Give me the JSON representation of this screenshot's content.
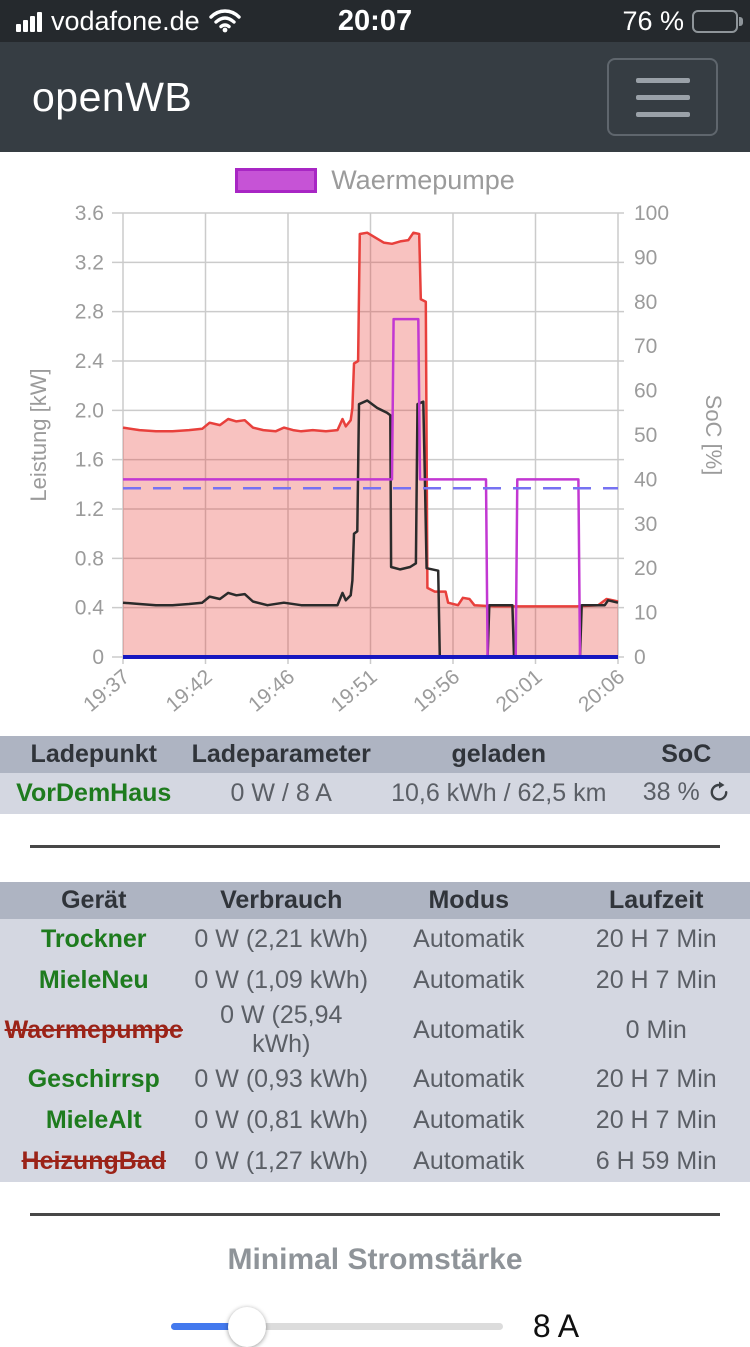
{
  "status_bar": {
    "carrier": "vodafone.de",
    "time": "20:07",
    "battery_label": "76 %",
    "battery_percent_value": 76
  },
  "header": {
    "app_title": "openWB"
  },
  "chart": {
    "legend_label": "Waermepumpe",
    "legend_color": "#c653d6",
    "legend_border": "#a826c4"
  },
  "chart_data": {
    "type": "line",
    "title": "",
    "xlabel": "",
    "ylabel_left": "Leistung [kW]",
    "ylabel_right": "SoC [%]",
    "ylim_left": [
      0,
      3.6
    ],
    "ylim_right": [
      0,
      100
    ],
    "yticks_left": [
      "0",
      "0.4",
      "0.8",
      "1.2",
      "1.6",
      "2.0",
      "2.4",
      "2.8",
      "3.2",
      "3.6"
    ],
    "yticks_right": [
      "0",
      "10",
      "20",
      "30",
      "40",
      "50",
      "60",
      "70",
      "80",
      "90",
      "100"
    ],
    "x_ticks": [
      "19:37",
      "19:42",
      "19:46",
      "19:51",
      "19:56",
      "20:01",
      "20:06"
    ],
    "x_tick_minutes": [
      0,
      5,
      9,
      14,
      19,
      24,
      29
    ],
    "grid": true,
    "legend_position": "top",
    "series": [
      {
        "name": "red_area_house_power",
        "axis": "left",
        "color": "#e8403c",
        "fill": "rgba(232,64,60,0.32)",
        "width": 2.5,
        "points": [
          [
            0,
            1.86
          ],
          [
            1,
            1.84
          ],
          [
            2,
            1.83
          ],
          [
            3,
            1.83
          ],
          [
            4,
            1.84
          ],
          [
            4.8,
            1.85
          ],
          [
            5.2,
            1.9
          ],
          [
            5.7,
            1.88
          ],
          [
            6.1,
            1.93
          ],
          [
            6.5,
            1.91
          ],
          [
            6.9,
            1.92
          ],
          [
            7.3,
            1.86
          ],
          [
            7.8,
            1.84
          ],
          [
            8.4,
            1.83
          ],
          [
            8.8,
            1.86
          ],
          [
            9.3,
            1.84
          ],
          [
            9.8,
            1.83
          ],
          [
            10.5,
            1.84
          ],
          [
            11.3,
            1.83
          ],
          [
            12.0,
            1.84
          ],
          [
            12.3,
            1.93
          ],
          [
            12.5,
            1.87
          ],
          [
            12.8,
            1.92
          ],
          [
            12.9,
            2.02
          ],
          [
            13.0,
            2.38
          ],
          [
            13.25,
            2.4
          ],
          [
            13.35,
            3.43
          ],
          [
            13.8,
            3.44
          ],
          [
            14.3,
            3.4
          ],
          [
            14.8,
            3.36
          ],
          [
            15.3,
            3.35
          ],
          [
            15.8,
            3.37
          ],
          [
            16.3,
            3.38
          ],
          [
            16.6,
            3.44
          ],
          [
            16.95,
            3.43
          ],
          [
            17.05,
            2.9
          ],
          [
            17.35,
            2.88
          ],
          [
            17.45,
            0.56
          ],
          [
            17.9,
            0.53
          ],
          [
            18.55,
            0.53
          ],
          [
            18.7,
            0.44
          ],
          [
            19.3,
            0.42
          ],
          [
            19.6,
            0.48
          ],
          [
            20.0,
            0.47
          ],
          [
            20.3,
            0.42
          ],
          [
            21.5,
            0.41
          ],
          [
            23.0,
            0.41
          ],
          [
            25.0,
            0.41
          ],
          [
            26.5,
            0.41
          ],
          [
            27.8,
            0.42
          ],
          [
            28.3,
            0.47
          ],
          [
            28.7,
            0.46
          ],
          [
            29,
            0.45
          ]
        ]
      },
      {
        "name": "black_line_power",
        "axis": "left",
        "color": "#2b2b2b",
        "width": 2.5,
        "points": [
          [
            0,
            0.44
          ],
          [
            1,
            0.43
          ],
          [
            2,
            0.42
          ],
          [
            3,
            0.42
          ],
          [
            4,
            0.43
          ],
          [
            4.8,
            0.44
          ],
          [
            5.2,
            0.49
          ],
          [
            5.7,
            0.47
          ],
          [
            6.1,
            0.52
          ],
          [
            6.5,
            0.5
          ],
          [
            6.9,
            0.51
          ],
          [
            7.3,
            0.45
          ],
          [
            8.0,
            0.42
          ],
          [
            8.8,
            0.44
          ],
          [
            9.8,
            0.42
          ],
          [
            11,
            0.42
          ],
          [
            12,
            0.42
          ],
          [
            12.3,
            0.52
          ],
          [
            12.5,
            0.46
          ],
          [
            12.8,
            0.5
          ],
          [
            12.9,
            0.62
          ],
          [
            13.0,
            1.0
          ],
          [
            13.2,
            1.02
          ],
          [
            13.3,
            2.05
          ],
          [
            13.8,
            2.08
          ],
          [
            14.4,
            2.02
          ],
          [
            15.0,
            1.98
          ],
          [
            15.2,
            1.96
          ],
          [
            15.25,
            0.73
          ],
          [
            15.8,
            0.71
          ],
          [
            16.4,
            0.73
          ],
          [
            16.75,
            0.76
          ],
          [
            16.85,
            2.05
          ],
          [
            17.2,
            2.07
          ],
          [
            17.3,
            1.44
          ],
          [
            17.4,
            0.72
          ],
          [
            18.1,
            0.7
          ],
          [
            18.2,
            0.0
          ],
          [
            21.1,
            0.0
          ],
          [
            21.2,
            0.42
          ],
          [
            22.6,
            0.42
          ],
          [
            22.7,
            0.0
          ],
          [
            26.7,
            0.0
          ],
          [
            26.8,
            0.42
          ],
          [
            28.2,
            0.42
          ],
          [
            28.4,
            0.46
          ],
          [
            29,
            0.44
          ]
        ]
      },
      {
        "name": "waermepumpe",
        "axis": "left",
        "color": "#c238d2",
        "width": 2.5,
        "points": [
          [
            0,
            1.44
          ],
          [
            15.3,
            1.44
          ],
          [
            15.4,
            2.74
          ],
          [
            16.9,
            2.74
          ],
          [
            17.0,
            1.44
          ],
          [
            21.0,
            1.44
          ],
          [
            21.1,
            0
          ],
          [
            22.8,
            0
          ],
          [
            22.9,
            1.44
          ],
          [
            26.6,
            1.44
          ],
          [
            26.7,
            0
          ],
          [
            29,
            0
          ]
        ]
      },
      {
        "name": "soc_dashed",
        "axis": "right",
        "color": "#7672f2",
        "width": 2.5,
        "dash": [
          18,
          12
        ],
        "points": [
          [
            0,
            38
          ],
          [
            29,
            38
          ]
        ]
      },
      {
        "name": "blue_zero_line",
        "axis": "left",
        "color": "#1717c0",
        "width": 4,
        "points": [
          [
            0,
            0
          ],
          [
            29,
            0
          ]
        ]
      }
    ]
  },
  "charge_table": {
    "headers": [
      "Ladepunkt",
      "Ladeparameter",
      "geladen",
      "SoC"
    ],
    "rows": [
      {
        "cells": [
          {
            "text": "VorDemHaus",
            "state": "on",
            "name": "chargepoint-name",
            "interactable": true
          },
          {
            "text": "0 W / 8 A",
            "name": "charge-params"
          },
          {
            "text": "10,6 kWh / 62,5 km",
            "name": "charged-amount"
          },
          {
            "text": "38 %",
            "name": "soc-value",
            "icon": "refresh"
          }
        ]
      }
    ]
  },
  "device_table": {
    "headers": [
      "Gerät",
      "Verbrauch",
      "Modus",
      "Laufzeit"
    ],
    "rows": [
      {
        "cells": [
          {
            "text": "Trockner",
            "state": "on",
            "name": "device-name",
            "interactable": true
          },
          {
            "text": "0 W (2,21 kWh)",
            "name": "consumption"
          },
          {
            "text": "Automatik",
            "name": "mode"
          },
          {
            "text": "20 H 7 Min",
            "name": "runtime"
          }
        ]
      },
      {
        "cells": [
          {
            "text": "MieleNeu",
            "state": "on",
            "name": "device-name",
            "interactable": true
          },
          {
            "text": "0 W (1,09 kWh)",
            "name": "consumption"
          },
          {
            "text": "Automatik",
            "name": "mode"
          },
          {
            "text": "20 H 7 Min",
            "name": "runtime"
          }
        ]
      },
      {
        "cells": [
          {
            "text": "Waermepumpe",
            "state": "off",
            "name": "device-name",
            "interactable": true
          },
          {
            "text": "0 W (25,94 kWh)",
            "name": "consumption"
          },
          {
            "text": "Automatik",
            "name": "mode"
          },
          {
            "text": "0 Min",
            "name": "runtime"
          }
        ]
      },
      {
        "cells": [
          {
            "text": "Geschirrsp",
            "state": "on",
            "name": "device-name",
            "interactable": true
          },
          {
            "text": "0 W (0,93 kWh)",
            "name": "consumption"
          },
          {
            "text": "Automatik",
            "name": "mode"
          },
          {
            "text": "20 H 7 Min",
            "name": "runtime"
          }
        ]
      },
      {
        "cells": [
          {
            "text": "MieleAlt",
            "state": "on",
            "name": "device-name",
            "interactable": true
          },
          {
            "text": "0 W (0,81 kWh)",
            "name": "consumption"
          },
          {
            "text": "Automatik",
            "name": "mode"
          },
          {
            "text": "20 H 7 Min",
            "name": "runtime"
          }
        ]
      },
      {
        "cells": [
          {
            "text": "HeizungBad",
            "state": "off",
            "name": "device-name",
            "interactable": true
          },
          {
            "text": "0 W (1,27 kWh)",
            "name": "consumption"
          },
          {
            "text": "Automatik",
            "name": "mode"
          },
          {
            "text": "6 H 59 Min",
            "name": "runtime"
          }
        ]
      }
    ]
  },
  "min_current": {
    "title": "Minimal Stromstärke",
    "value_label": "8 A",
    "slider_percent": 23
  }
}
